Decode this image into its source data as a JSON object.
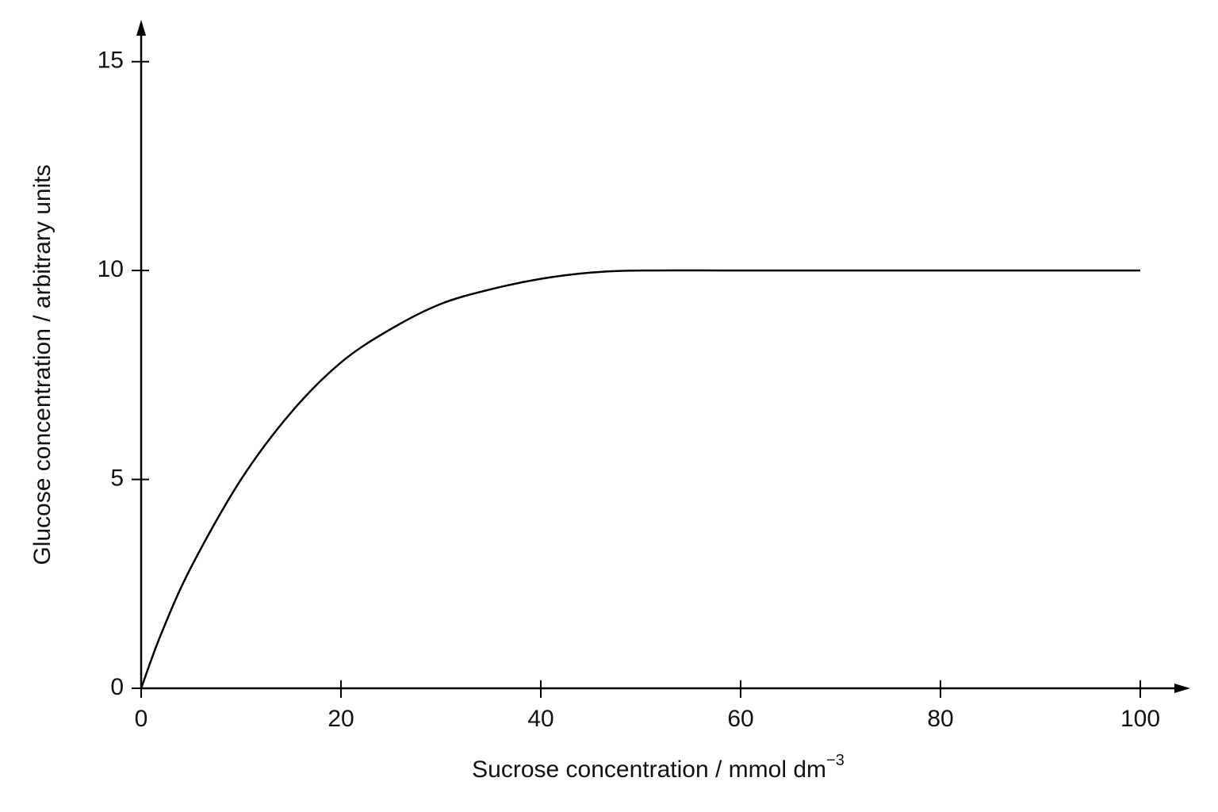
{
  "chart_data": {
    "type": "line",
    "x_label": "Sucrose concentration / mmol dm",
    "x_label_superscript": "−3",
    "y_label": "Glucose concentration / arbitrary units",
    "x": [
      0,
      2,
      5,
      10,
      15,
      20,
      25,
      30,
      35,
      40,
      45,
      50,
      60,
      70,
      80,
      90,
      100
    ],
    "series": [
      {
        "color": "#000000",
        "values": [
          0,
          1.3,
          2.9,
          5.0,
          6.6,
          7.8,
          8.6,
          9.2,
          9.55,
          9.8,
          9.95,
          10,
          10,
          10,
          10,
          10,
          10
        ]
      }
    ],
    "xlim": [
      0,
      105
    ],
    "xticks": [
      0,
      20,
      40,
      60,
      80,
      100
    ],
    "ylim": [
      0,
      16
    ],
    "yticks": [
      0,
      5,
      10,
      15
    ],
    "grid": false
  }
}
